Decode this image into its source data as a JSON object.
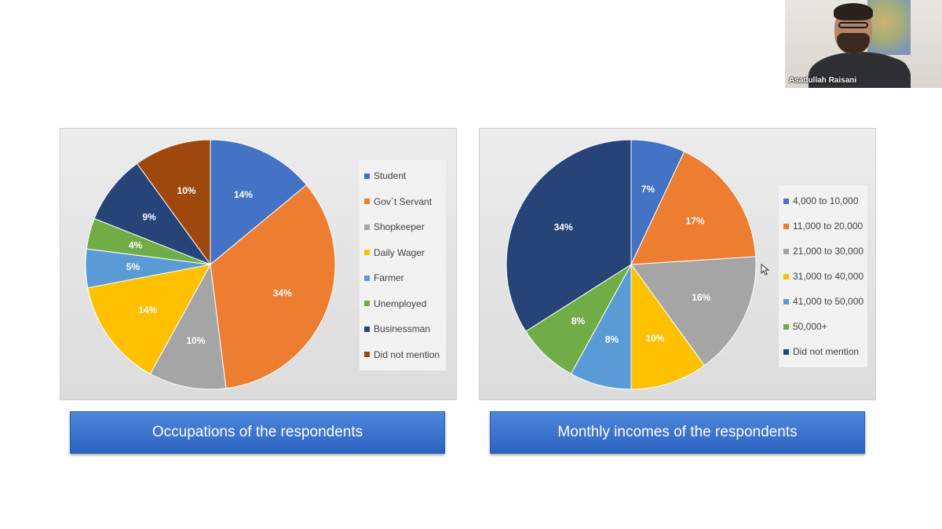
{
  "participant": {
    "name": "Asadullah Raisani"
  },
  "colors": {
    "caption_bg": "#3b74d1",
    "chart_bg": "#e4e4e4",
    "label_text": "#ffffff"
  },
  "chart_data": [
    {
      "type": "pie",
      "title": "Occupations of the respondents",
      "legend_position": "right",
      "slices": [
        {
          "label": "Student",
          "value": 14,
          "display": "14%",
          "color": "#4472c4"
        },
        {
          "label": "Gov`t Servant",
          "value": 34,
          "display": "34%",
          "color": "#ed7d31"
        },
        {
          "label": "Shopkeeper",
          "value": 10,
          "display": "10%",
          "color": "#a5a5a5"
        },
        {
          "label": "Daily Wager",
          "value": 14,
          "display": "14%",
          "color": "#ffc000"
        },
        {
          "label": "Farmer",
          "value": 5,
          "display": "5%",
          "color": "#5b9bd5"
        },
        {
          "label": "Unemployed",
          "value": 4,
          "display": "4%",
          "color": "#70ad47"
        },
        {
          "label": "Businessman",
          "value": 9,
          "display": "9%",
          "color": "#264478"
        },
        {
          "label": "Did not mention",
          "value": 10,
          "display": "10%",
          "color": "#9e480e"
        }
      ]
    },
    {
      "type": "pie",
      "title": "Monthly incomes of the respondents",
      "legend_position": "right",
      "slices": [
        {
          "label": "4,000 to 10,000",
          "value": 7,
          "display": "7%",
          "color": "#4472c4"
        },
        {
          "label": "11,000 to 20,000",
          "value": 17,
          "display": "17%",
          "color": "#ed7d31"
        },
        {
          "label": "21,000 to 30,000",
          "value": 16,
          "display": "16%",
          "color": "#a5a5a5"
        },
        {
          "label": "31,000 to 40,000",
          "value": 10,
          "display": "10%",
          "color": "#ffc000"
        },
        {
          "label": "41,000 to 50,000",
          "value": 8,
          "display": "8%",
          "color": "#5b9bd5"
        },
        {
          "label": "50,000+",
          "value": 8,
          "display": "8%",
          "color": "#70ad47"
        },
        {
          "label": "Did not mention",
          "value": 34,
          "display": "34%",
          "color": "#264478"
        }
      ]
    }
  ]
}
